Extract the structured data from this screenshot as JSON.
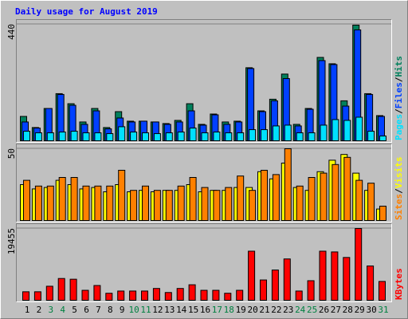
{
  "chart_data": {
    "type": "bar",
    "title": "Daily usage for August 2019",
    "categories": [
      "1",
      "2",
      "3",
      "4",
      "5",
      "6",
      "7",
      "8",
      "9",
      "10",
      "11",
      "12",
      "13",
      "14",
      "15",
      "16",
      "17",
      "18",
      "19",
      "20",
      "21",
      "22",
      "23",
      "24",
      "25",
      "26",
      "27",
      "28",
      "29",
      "30",
      "31"
    ],
    "highlight": [
      false,
      false,
      true,
      true,
      false,
      false,
      false,
      false,
      false,
      true,
      true,
      false,
      false,
      false,
      false,
      false,
      true,
      true,
      false,
      false,
      false,
      false,
      false,
      true,
      true,
      false,
      false,
      false,
      false,
      false,
      true
    ],
    "category_color": "#000000",
    "highlight_color": "#008040",
    "legend_separator": "/",
    "panels": [
      {
        "ylim": [
          0,
          440
        ],
        "yticks": [
          440
        ],
        "series": [
          {
            "name": "Hits",
            "color": "#00805c",
            "values": [
              92,
              50,
              122,
              178,
              140,
              71,
              122,
              50,
              110,
              74,
              74,
              71,
              65,
              77,
              140,
              62,
              101,
              71,
              74,
              276,
              113,
              157,
              252,
              62,
              122,
              315,
              291,
              151,
              437,
              178,
              95
            ]
          },
          {
            "name": "Files",
            "color": "#0040ff",
            "values": [
              71,
              48,
              122,
              175,
              134,
              62,
              113,
              45,
              86,
              71,
              74,
              71,
              62,
              71,
              113,
              59,
              98,
              62,
              71,
              273,
              110,
              151,
              235,
              56,
              119,
              303,
              288,
              131,
              419,
              175,
              92
            ]
          },
          {
            "name": "Pages",
            "color": "#00e0ff",
            "values": [
              36,
              30,
              30,
              33,
              36,
              30,
              30,
              27,
              53,
              33,
              30,
              27,
              30,
              33,
              48,
              30,
              33,
              30,
              30,
              42,
              42,
              56,
              59,
              30,
              30,
              59,
              80,
              77,
              89,
              36,
              18
            ]
          }
        ]
      },
      {
        "ylim": [
          0,
          50
        ],
        "yticks": [
          50
        ],
        "series": [
          {
            "name": "Visits",
            "color": "#ffff00",
            "values": [
              25,
              22,
              23,
              28,
              25,
              22,
              23,
              20,
              25,
              20,
              21,
              20,
              21,
              21,
              25,
              20,
              21,
              21,
              23,
              23,
              34,
              29,
              40,
              23,
              21,
              34,
              42,
              46,
              33,
              21,
              8
            ]
          },
          {
            "name": "Sites",
            "color": "#ff8000",
            "values": [
              28,
              24,
              24,
              30,
              30,
              24,
              24,
              24,
              35,
              21,
              24,
              21,
              21,
              24,
              30,
              23,
              21,
              23,
              31,
              21,
              35,
              32,
              50,
              24,
              30,
              33,
              39,
              44,
              28,
              26,
              10
            ]
          }
        ]
      },
      {
        "ylim": [
          0,
          19455
        ],
        "yticks": [
          19455
        ],
        "series": [
          {
            "name": "KBytes",
            "color": "#ff0000",
            "values": [
              2300,
              2300,
              3800,
              5900,
              5700,
              2700,
              4000,
              1900,
              2500,
              2500,
              2500,
              3200,
              2100,
              3200,
              4200,
              2700,
              2700,
              1900,
              2700,
              13300,
              5500,
              8200,
              11200,
              2500,
              5300,
              13300,
              13100,
              11600,
              19455,
              9300,
              5100
            ]
          }
        ]
      }
    ]
  }
}
